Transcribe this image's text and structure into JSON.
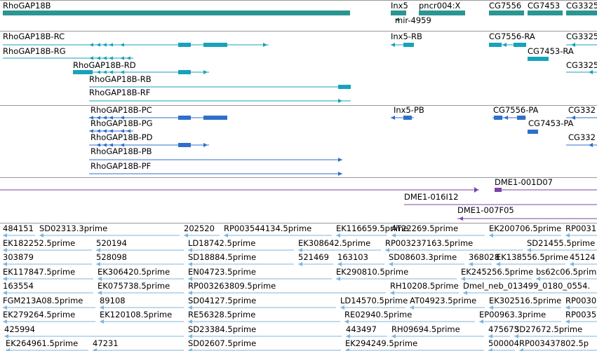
{
  "colors": {
    "gene": "#2a9591",
    "rc_transcript": "#17a3ba",
    "pc_transcript": "#2f6fcc",
    "clone": "#7a45a8",
    "est": "#7fb6dd",
    "divider": "#999999"
  },
  "gene_track": {
    "labels": [
      "RhoGAP18B",
      "Inx5",
      "pncr004:X",
      "mir-4959",
      "CG7556",
      "CG7453",
      "CG3325"
    ]
  },
  "transcripts_rc": {
    "labels": [
      "RhoGAP18B-RC",
      "RhoGAP18B-RG",
      "RhoGAP18B-RD",
      "RhoGAP18B-RB",
      "RhoGAP18B-RF",
      "Inx5-RB",
      "CG7556-RA",
      "CG7453-RA",
      "CG3325",
      "CG3325"
    ]
  },
  "transcripts_pc": {
    "labels": [
      "RhoGAP18B-PC",
      "RhoGAP18B-PG",
      "RhoGAP18B-PD",
      "RhoGAP18B-PB",
      "RhoGAP18B-PF",
      "Inx5-PB",
      "CG7556-PA",
      "CG7453-PA",
      "CG332",
      "CG332"
    ]
  },
  "clones": {
    "labels": [
      "DME1-001D07",
      "DME1-016I12",
      "DME1-007F05"
    ]
  },
  "ests": {
    "labels": [
      "484151",
      "SD02313.3prime",
      "202520",
      "RP003544134.5prime",
      "EK116659.5prime",
      "AT22269.5prime",
      "EK200706.5prime",
      "RP0031",
      "EK182252.5prime",
      "520194",
      "LD18742.5prime",
      "EK308642.5prime",
      "RP003237163.5prime",
      "SD21455.5prime",
      "303879",
      "528098",
      "SD18884.5prime",
      "521469",
      "163103",
      "SD08603.3prime",
      "368028",
      "EK138556.5prime",
      "45124",
      "EK117847.5prime",
      "EK306420.5prime",
      "EN04723.5prime",
      "EK290810.5prime",
      "EK245256.5prime",
      "bs62c06.5prim",
      "163554",
      "EK075738.5prime",
      "RP003263809.5prime",
      "RH10208.5prime",
      "Dmel_neb_013499_0180_0554.",
      "FGM213A08.5prime",
      "89108",
      "SD04127.5prime",
      "LD14570.5prime",
      "AT04923.5prime",
      "EK302516.5prime",
      "RP0030",
      "EK279264.5prime",
      "EK120108.5prime",
      "RE56328.5prime",
      "RE02940.5prime",
      "EP00963.3prime",
      "RP0035",
      "425994",
      "SD23384.5prime",
      "443497",
      "RH09694.5prime",
      "475673",
      "SD27672.5prime",
      "EK264961.5prime",
      "47231",
      "SD02607.5prime",
      "EK294249.5prime",
      "500004",
      "RP003437802.5p"
    ]
  }
}
